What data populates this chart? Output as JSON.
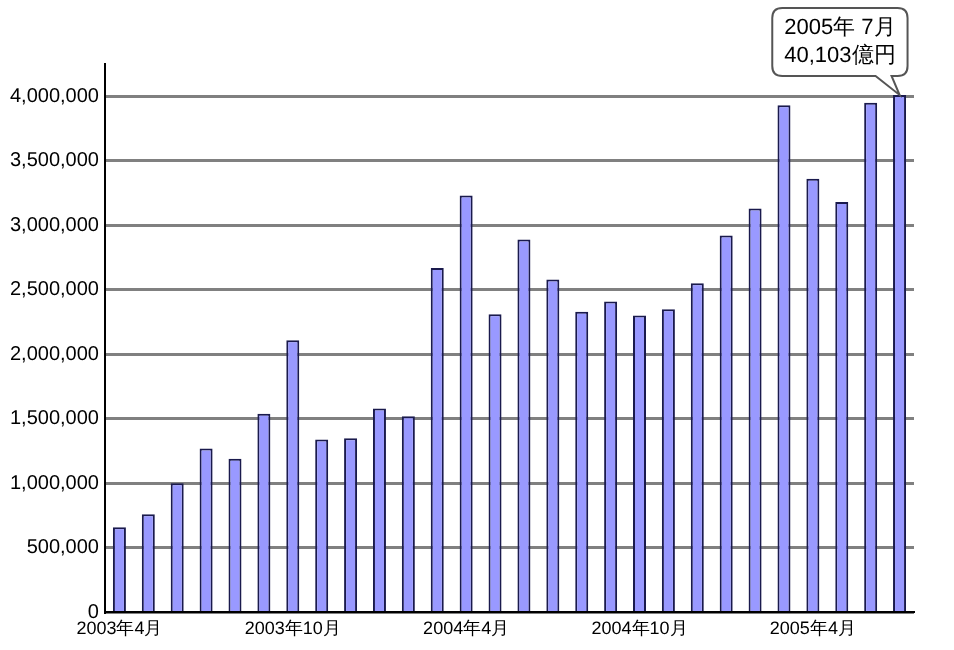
{
  "chart_data": {
    "type": "bar",
    "categories": [
      "2003年4月",
      null,
      null,
      null,
      null,
      null,
      "2003年10月",
      null,
      null,
      null,
      null,
      null,
      "2004年4月",
      null,
      null,
      null,
      null,
      null,
      "2004年10月",
      null,
      null,
      null,
      null,
      null,
      "2005年4月",
      null,
      null,
      null
    ],
    "values": [
      660000,
      760000,
      1000000,
      1270000,
      1190000,
      1540000,
      2110000,
      1340000,
      1350000,
      1580000,
      1520000,
      2670000,
      3230000,
      2310000,
      2890000,
      2580000,
      2330000,
      2410000,
      2300000,
      2350000,
      2550000,
      2920000,
      3130000,
      3930000,
      3360000,
      3180000,
      3950000,
      4010300
    ],
    "color": "#9999ff",
    "ylim": [
      0,
      4250000
    ],
    "yticks": [
      0,
      {
        "value": 500000,
        "label": "500,000"
      },
      {
        "value": 1000000,
        "label": "1,000,000"
      },
      {
        "value": 1500000,
        "label": "1,500,000"
      },
      {
        "value": 2000000,
        "label": "2,000,000"
      },
      {
        "value": 2500000,
        "label": "2,500,000"
      },
      {
        "value": 3000000,
        "label": "3,000,000"
      },
      {
        "value": 3500000,
        "label": "3,500,000"
      },
      {
        "value": 4000000,
        "label": "4,000,000"
      }
    ],
    "grid": "y",
    "legend": false,
    "annotations": [
      "2005年 7月\n40,103億円"
    ]
  }
}
